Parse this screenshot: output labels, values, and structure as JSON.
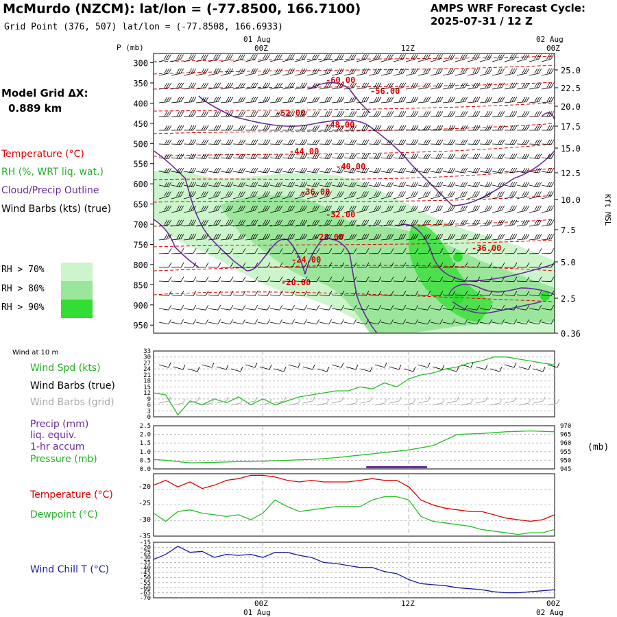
{
  "header": {
    "title": "McMurdo (NZCM):  lat/lon = (-77.8500, 166.7100)",
    "grid_point": "Grid Point (376, 507) lat/lon = (-77.8508, 166.6933)",
    "cycle_line1": "AMPS WRF Forecast Cycle:",
    "cycle_line2": "2025-07-31 / 12  Z"
  },
  "sidebar": {
    "model_grid_label": "Model Grid ΔX:",
    "model_grid_value": "0.889 km",
    "legend_temperature": "Temperature (°C)",
    "legend_rh": "RH (%, WRT liq. wat.)",
    "legend_cloud": "Cloud/Precip Outline",
    "legend_wind": "Wind Barbs (kts) (true)",
    "rh70": "RH > 70%",
    "rh80": "RH > 80%",
    "rh90": "RH > 90%",
    "wind10m": "Wind at 10 m",
    "wind_spd": "Wind Spd (kts)",
    "wind_barbs_true": "Wind Barbs (true)",
    "wind_barbs_grid": "Wind Barbs (grid)",
    "precip1": "Precip (mm)",
    "precip2": "liq. equiv.",
    "precip3": "1-hr accum",
    "pressure": "Pressure (mb)",
    "temperature": "Temperature (°C)",
    "dewpoint": "Dewpoint (°C)",
    "windchill": "Wind Chill T (°C)"
  },
  "colors": {
    "temperature": "#e00000",
    "rh_green": "#22c022",
    "cloud_outline": "#6a2a9a",
    "wind_chill": "#1a1aa0",
    "grid_barbs": "#aaaaaa",
    "rh70": "#ccf5cc",
    "rh80": "#9be69b",
    "rh90": "#33dd33"
  },
  "axes": {
    "time_top_dates": [
      "01 Aug",
      "02 Aug"
    ],
    "time_ticks": [
      "00Z",
      "12Z",
      "00Z"
    ],
    "time_bottom_dates": [
      "01 Aug",
      "02 Aug"
    ],
    "pressure_axis_title": "P (mb)",
    "height_axis_title": "Kft MSL",
    "pressure_levels": [
      300,
      350,
      400,
      450,
      500,
      550,
      600,
      650,
      700,
      750,
      800,
      850,
      900,
      950
    ],
    "height_labels": [
      "25.0",
      "22.5",
      "20.0",
      "17.5",
      "15.0",
      "12.5",
      "10.0",
      "7.5",
      "5.0",
      "2.5",
      "0.36"
    ],
    "precip_mb_unit": "(mb)"
  },
  "chart_data": [
    {
      "type": "line",
      "name": "cross-section",
      "contour_labels": [
        "-60.00",
        "-56.00",
        "-52.00",
        "-48.00",
        "-44.00",
        "-40.00",
        "-36.00",
        "-32.00",
        "-28.00",
        "-24.00",
        "-20.00",
        "-36.00"
      ],
      "x_hours": [
        0,
        12,
        24
      ],
      "ylim": [
        300,
        960
      ]
    },
    {
      "type": "line",
      "name": "wind10m",
      "y_ticks": [
        "33",
        "30",
        "27",
        "24",
        "21",
        "18",
        "15",
        "12",
        "9",
        "6",
        "3",
        "0"
      ],
      "ylim": [
        0,
        33
      ],
      "x": [
        -9,
        -8,
        -7,
        -6,
        -5,
        -4,
        -3,
        -2,
        -1,
        0,
        1,
        2,
        3,
        4,
        5,
        6,
        7,
        8,
        9,
        10,
        11,
        12,
        13,
        14,
        15,
        16,
        17,
        18,
        19,
        20,
        21,
        22,
        23,
        24
      ],
      "series": [
        {
          "values": [
            12,
            11,
            1,
            8,
            6,
            9,
            7,
            10,
            6,
            9,
            6,
            8,
            10,
            11,
            12,
            13,
            13,
            15,
            14,
            17,
            15,
            19,
            21,
            22,
            24,
            25,
            27,
            28,
            30,
            30,
            29,
            28,
            27,
            26
          ]
        }
      ]
    },
    {
      "type": "line",
      "name": "precip-pressure",
      "y_ticks_left": [
        "2.5",
        "2.0",
        "1.5",
        "1.0",
        "0.5",
        "0.0"
      ],
      "y_ticks_right": [
        "970",
        "965",
        "960",
        "955",
        "950",
        "945"
      ],
      "ylim": [
        0,
        2.5
      ],
      "x": [
        -9,
        -8,
        -6,
        -4,
        -2,
        0,
        2,
        4,
        6,
        8,
        10,
        12,
        14,
        16,
        18,
        20,
        22,
        24
      ],
      "series": [
        {
          "values": [
            0.55,
            0.5,
            0.35,
            0.38,
            0.42,
            0.45,
            0.5,
            0.55,
            0.65,
            0.8,
            0.95,
            1.1,
            1.35,
            2.0,
            2.05,
            2.15,
            2.2,
            2.15
          ]
        },
        {
          "values": [
            0,
            0,
            0,
            0,
            0,
            0,
            0,
            0,
            0,
            0.05,
            0.08,
            0.06,
            0.05,
            0,
            0,
            0,
            0,
            0
          ]
        }
      ]
    },
    {
      "type": "line",
      "name": "temp-dewpoint",
      "y_ticks": [
        "-20",
        "-25",
        "-30",
        "-35"
      ],
      "ylim": [
        -35,
        -16
      ],
      "x": [
        -9,
        -8,
        -7,
        -6,
        -5,
        -4,
        -3,
        -2,
        -1,
        0,
        1,
        2,
        3,
        4,
        5,
        6,
        7,
        8,
        9,
        10,
        11,
        12,
        13,
        14,
        15,
        16,
        17,
        18,
        19,
        20,
        21,
        22,
        23,
        24
      ],
      "series": [
        {
          "values": [
            -19.5,
            -18,
            -20,
            -18.5,
            -20.5,
            -19.5,
            -18,
            -17.5,
            -16.5,
            -16.5,
            -17,
            -18,
            -18.5,
            -18,
            -18.5,
            -18.5,
            -18.5,
            -18,
            -17.5,
            -18,
            -18,
            -20,
            -24,
            -25.5,
            -26.5,
            -27,
            -27.5,
            -27.5,
            -28.5,
            -29.5,
            -30,
            -30.5,
            -30,
            -28.5
          ]
        },
        {
          "values": [
            -28,
            -30.5,
            -27.5,
            -27,
            -28,
            -28.5,
            -29,
            -28.5,
            -30,
            -28,
            -24,
            -26,
            -27.5,
            -27,
            -26.5,
            -26,
            -26,
            -26,
            -24,
            -23,
            -23,
            -24,
            -29,
            -30.5,
            -31,
            -31.5,
            -32,
            -33,
            -33.5,
            -34,
            -34.5,
            -34,
            -34,
            -33
          ]
        }
      ]
    },
    {
      "type": "line",
      "name": "windchill",
      "y_ticks": [
        "-15",
        "-20",
        "-25",
        "-30",
        "-35",
        "-40",
        "-45",
        "-50",
        "-55",
        "-60",
        "-65",
        "-70"
      ],
      "ylim": [
        -70,
        -15
      ],
      "x": [
        -9,
        -8,
        -7,
        -6,
        -5,
        -4,
        -3,
        -2,
        -1,
        0,
        1,
        2,
        3,
        4,
        5,
        6,
        7,
        8,
        9,
        10,
        11,
        12,
        13,
        14,
        15,
        16,
        17,
        18,
        19,
        20,
        21,
        22,
        23,
        24
      ],
      "series": [
        {
          "values": [
            -32,
            -27,
            -19,
            -25,
            -24,
            -30,
            -27,
            -28,
            -27,
            -30,
            -25,
            -25,
            -28,
            -30,
            -35,
            -36,
            -38,
            -40,
            -40,
            -44,
            -46,
            -52,
            -56,
            -57,
            -58,
            -60,
            -61,
            -62,
            -64,
            -65,
            -65,
            -64,
            -63,
            -62
          ]
        }
      ]
    }
  ]
}
